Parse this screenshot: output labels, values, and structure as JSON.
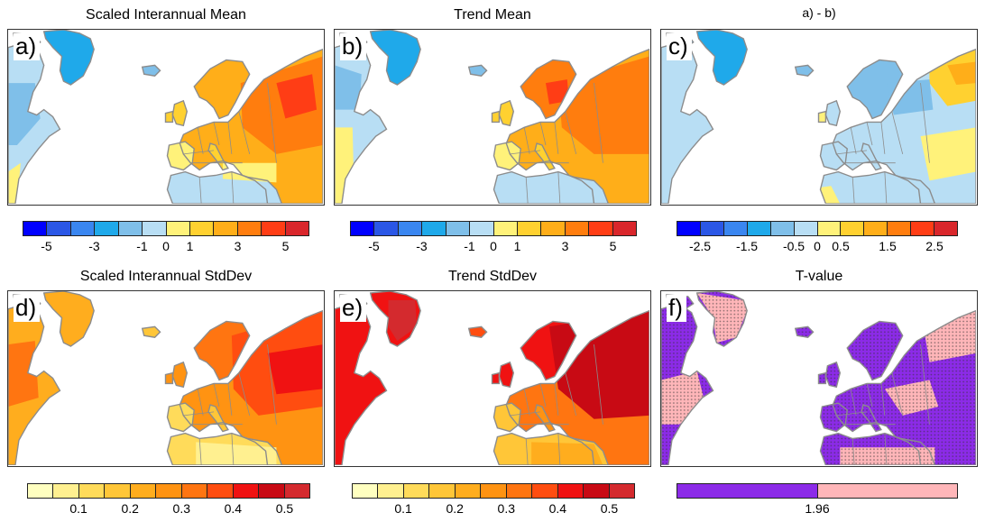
{
  "panels": [
    {
      "id": "a",
      "label": "a)",
      "title": "Scaled Interannual Mean",
      "colorbar": "div12",
      "ticks": [
        "-5",
        "-3",
        "-1",
        "0",
        "1",
        "3",
        "5"
      ]
    },
    {
      "id": "b",
      "label": "b)",
      "title": "Trend Mean",
      "colorbar": "div12",
      "ticks": [
        "-5",
        "-3",
        "-1",
        "0",
        "1",
        "3",
        "5"
      ]
    },
    {
      "id": "c",
      "label": "c)",
      "title": "a) - b)",
      "colorbar": "div12",
      "ticks": [
        "-2.5",
        "-1.5",
        "-0.5",
        "0",
        "0.5",
        "1.5",
        "2.5"
      ]
    },
    {
      "id": "d",
      "label": "d)",
      "title": "Scaled Interannual StdDev",
      "colorbar": "seq11",
      "ticks": [
        "0.1",
        "0.2",
        "0.3",
        "0.4",
        "0.5"
      ]
    },
    {
      "id": "e",
      "label": "e)",
      "title": "Trend StdDev",
      "colorbar": "seq11",
      "ticks": [
        "0.1",
        "0.2",
        "0.3",
        "0.4",
        "0.5"
      ]
    },
    {
      "id": "f",
      "label": "f)",
      "title": "T-value",
      "colorbar": "two",
      "ticks": [
        "1.96"
      ]
    }
  ],
  "colors": {
    "div12": [
      "#0000ff",
      "#2b57e6",
      "#3a86f0",
      "#1fa9ea",
      "#7fbfe9",
      "#b8def4",
      "#fff27a",
      "#ffd130",
      "#ffae19",
      "#ff7d0e",
      "#ff3d15",
      "#d9262b"
    ],
    "seq11": [
      "#ffffc0",
      "#fff090",
      "#ffdb5a",
      "#ffc638",
      "#ffad1e",
      "#ff9312",
      "#ff7511",
      "#ff4d10",
      "#f01212",
      "#c80a14",
      "#d42a2e"
    ],
    "two": [
      "#8c2be8",
      "#ffb6b9"
    ],
    "ocean": "#ffffff",
    "coast": "#8c8c8c"
  }
}
